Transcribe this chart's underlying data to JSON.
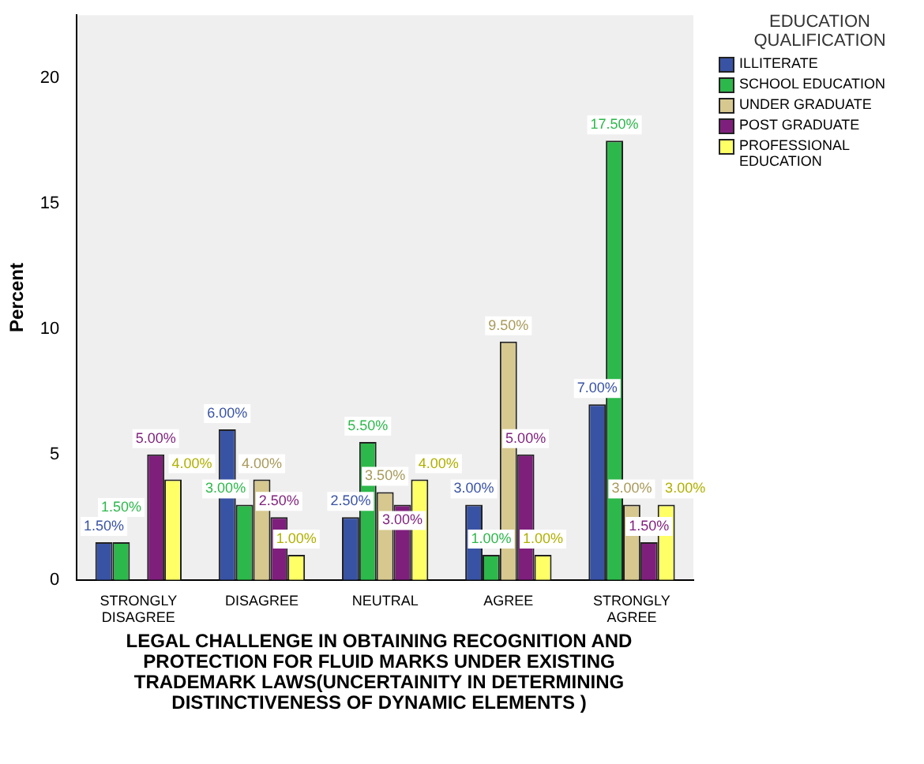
{
  "chart_data": {
    "type": "bar",
    "ylabel": "Percent",
    "xlabel": "LEGAL CHALLENGE IN OBTAINING RECOGNITION AND PROTECTION FOR FLUID MARKS UNDER EXISTING TRADEMARK LAWS(UNCERTAINITY IN DETERMINING DISTINCTIVENESS OF DYNAMIC ELEMENTS )",
    "legend_title": "EDUCATION QUALIFICATION",
    "legend": "right",
    "grid": false,
    "ylim": [
      0,
      22.5
    ],
    "yticks": [
      0,
      5,
      10,
      15,
      20
    ],
    "categories": [
      "STRONGLY DISAGREE",
      "DISAGREE",
      "NEUTRAL",
      "AGREE",
      "STRONGLY AGREE"
    ],
    "series": [
      {
        "name": "ILLITERATE",
        "color": "#3953a4",
        "values": [
          1.5,
          6,
          2.5,
          3,
          7
        ],
        "value_labels": [
          "1.50%",
          "6.00%",
          "2.50%",
          "3.00%",
          "7.00%"
        ]
      },
      {
        "name": "SCHOOL EDUCATION",
        "color": "#2db84b",
        "values": [
          1.5,
          3,
          5.5,
          1,
          17.5
        ],
        "value_labels": [
          "1.50%",
          "3.00%",
          "5.50%",
          "1.00%",
          "17.50%"
        ]
      },
      {
        "name": "UNDER GRADUATE",
        "color": "#d6c88f",
        "values": [
          null,
          4,
          3.5,
          9.5,
          3
        ],
        "value_labels": [
          null,
          "4.00%",
          "3.50%",
          "9.50%",
          "3.00%"
        ]
      },
      {
        "name": "POST GRADUATE",
        "color": "#7f1f7c",
        "values": [
          5,
          2.5,
          3,
          5,
          1.5
        ],
        "value_labels": [
          "5.00%",
          "2.50%",
          "3.00%",
          "5.00%",
          "1.50%"
        ]
      },
      {
        "name": "PROFESSIONAL EDUCATION",
        "color": "#ffff66",
        "values": [
          4,
          1,
          4,
          1,
          3
        ],
        "value_labels": [
          "4.00%",
          "1.00%",
          "4.00%",
          "1.00%",
          "3.00%"
        ]
      }
    ]
  }
}
